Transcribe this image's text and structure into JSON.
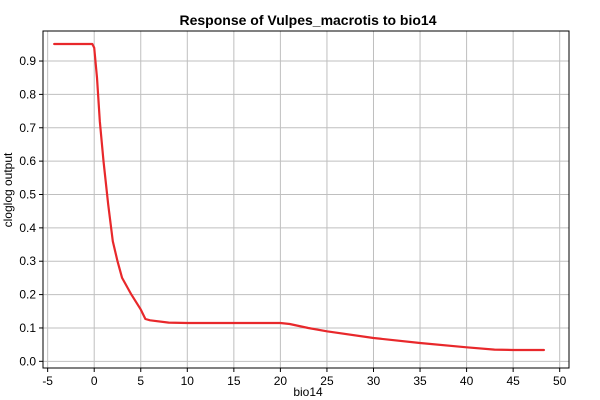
{
  "chart_data": {
    "type": "line",
    "title": "Response of Vulpes_macrotis to bio14",
    "xlabel": "bio14",
    "ylabel": "cloglog output",
    "xlim": [
      -5.5,
      51
    ],
    "ylim": [
      -0.02,
      0.99
    ],
    "xticks": [
      -5,
      0,
      5,
      10,
      15,
      20,
      25,
      30,
      35,
      40,
      45,
      50
    ],
    "yticks": [
      0.0,
      0.1,
      0.2,
      0.3,
      0.4,
      0.5,
      0.6,
      0.7,
      0.8,
      0.9
    ],
    "grid": true,
    "series": [
      {
        "color": "#e8282b",
        "x": [
          -4.3,
          -1.0,
          -0.2,
          0.0,
          0.3,
          0.6,
          1.0,
          1.5,
          2.0,
          2.5,
          3.0,
          4.0,
          5.0,
          5.5,
          6.0,
          8.0,
          10.0,
          15.0,
          20.0,
          21.0,
          23.0,
          25.0,
          30.0,
          35.0,
          40.0,
          43.0,
          45.0,
          48.3
        ],
        "y": [
          0.951,
          0.951,
          0.951,
          0.94,
          0.85,
          0.72,
          0.6,
          0.47,
          0.36,
          0.3,
          0.25,
          0.2,
          0.155,
          0.127,
          0.123,
          0.116,
          0.115,
          0.115,
          0.115,
          0.112,
          0.1,
          0.09,
          0.07,
          0.055,
          0.042,
          0.035,
          0.034,
          0.034
        ]
      }
    ]
  }
}
